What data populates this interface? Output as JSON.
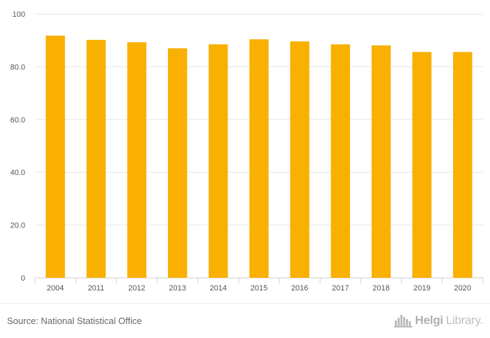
{
  "chart_data": {
    "type": "bar",
    "categories": [
      "2004",
      "2011",
      "2012",
      "2013",
      "2014",
      "2015",
      "2016",
      "2017",
      "2018",
      "2019",
      "2020"
    ],
    "values": [
      91.8,
      90.2,
      89.3,
      87.0,
      88.5,
      90.4,
      89.6,
      88.5,
      88.1,
      85.6,
      85.6
    ],
    "ylim": [
      0,
      100
    ],
    "yticks": [
      0,
      20,
      40,
      60,
      80,
      100
    ],
    "ytick_labels": [
      "0",
      "20.0",
      "40.0",
      "60.0",
      "80.0",
      "100"
    ],
    "grid": true,
    "bar_color": "#f9b000",
    "title": "",
    "xlabel": "",
    "ylabel": ""
  },
  "footer": {
    "source": "Source: National Statistical Office",
    "brand_part1": "Helgi",
    "brand_part2": "Library."
  }
}
